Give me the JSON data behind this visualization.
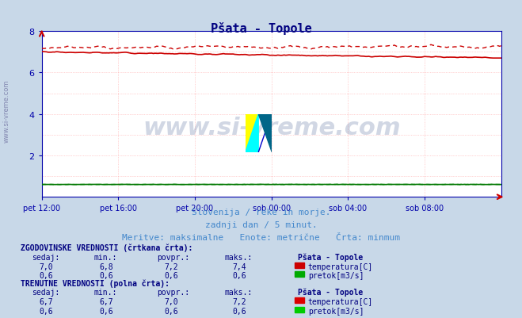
{
  "title": "Pšata - Topole",
  "title_color": "#000080",
  "bg_color": "#c8d8e8",
  "plot_bg_color": "#ffffff",
  "grid_color": "#ffaaaa",
  "dot_grid_color": "#ffcccc",
  "subtitle1": "Slovenija / reke in morje.",
  "subtitle2": "zadnji dan / 5 minut.",
  "subtitle3": "Meritve: maksimalne   Enote: metrične   Črta: minmum",
  "subtitle_color": "#4488cc",
  "watermark_text": "www.si-vreme.com",
  "watermark_color": "#1a3a7a",
  "axis_color": "#0000aa",
  "arrow_color": "#cc0000",
  "ylim": [
    0,
    8
  ],
  "yticks": [
    2,
    4,
    6,
    8
  ],
  "n_points": 289,
  "x_tick_positions": [
    0,
    48,
    96,
    144,
    192,
    240,
    288
  ],
  "x_tick_labels": [
    "pet 12:00",
    "pet 16:00",
    "pet 20:00",
    "sob 00:00",
    "sob 04:00",
    "sob 08:00"
  ],
  "temp_solid_color": "#cc0000",
  "temp_dashed_color": "#cc0000",
  "flow_solid_color": "#007700",
  "flow_dashed_color": "#009900",
  "temp_solid_seed": 42,
  "flow_constant": 0.6,
  "hist_sedaj": "7,0",
  "hist_min": "6,8",
  "hist_povpr": "7,2",
  "hist_maks": "7,4",
  "hist_flow_sedaj": "0,6",
  "hist_flow_min": "0,6",
  "hist_flow_povpr": "0,6",
  "hist_flow_maks": "0,6",
  "cur_sedaj": "6,7",
  "cur_min": "6,7",
  "cur_povpr": "7,0",
  "cur_maks": "7,2",
  "cur_flow_sedaj": "0,6",
  "cur_flow_min": "0,6",
  "cur_flow_povpr": "0,6",
  "cur_flow_maks": "0,6",
  "station": "Pšata - Topole",
  "temp_rect_color_hist": "#cc0000",
  "flow_rect_color_hist": "#00aa00",
  "temp_rect_color_cur": "#dd0000",
  "flow_rect_color_cur": "#00cc00",
  "table_header_color": "#000080",
  "table_label_color": "#000080",
  "table_value_color": "#000080"
}
